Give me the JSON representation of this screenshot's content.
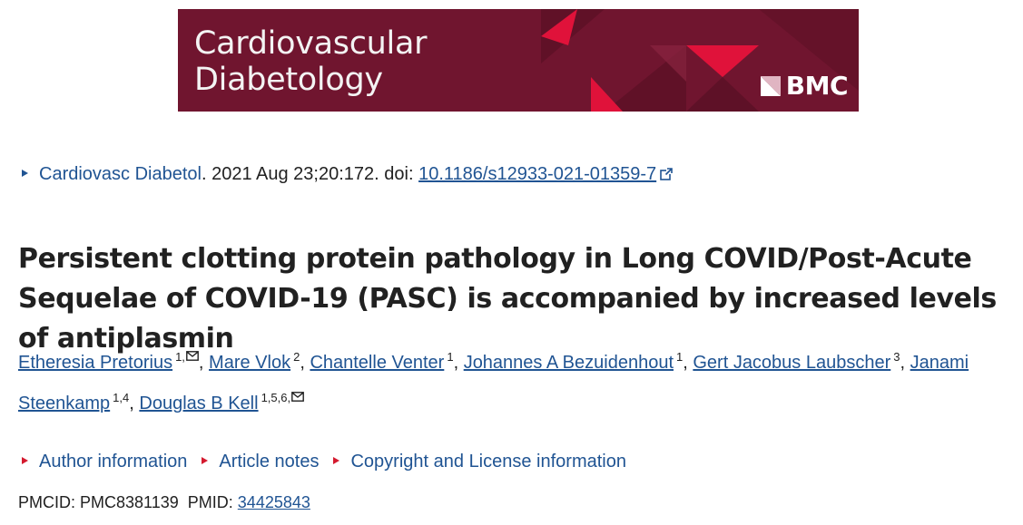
{
  "banner": {
    "journal_line1": "Cardiovascular",
    "journal_line2": "Diabetology",
    "publisher": "BMC",
    "colors": {
      "background": "#70152f",
      "accent": "#e0123a"
    }
  },
  "citation": {
    "journal": "Cardiovasc Diabetol",
    "details": ". 2021 Aug 23;20:172. doi: ",
    "doi": "10.1186/s12933-021-01359-7"
  },
  "title": "Persistent clotting protein pathology in Long COVID/Post-Acute Sequelae of COVID-19 (PASC) is accompanied by increased levels of antiplasmin",
  "authors": [
    {
      "name": "Etheresia Pretorius",
      "aff": "1,",
      "mail": true,
      "sep": ", "
    },
    {
      "name": "Mare Vlok",
      "aff": "2",
      "mail": false,
      "sep": ", "
    },
    {
      "name": "Chantelle Venter",
      "aff": "1",
      "mail": false,
      "sep": ", "
    },
    {
      "name": "Johannes A Bezuidenhout",
      "aff": "1",
      "mail": false,
      "sep": ", "
    },
    {
      "name": "Gert Jacobus Laubscher",
      "aff": "3",
      "mail": false,
      "sep": ", "
    },
    {
      "name": "Janami Steenkamp",
      "aff": "1,4",
      "mail": false,
      "sep": ", "
    },
    {
      "name": "Douglas B Kell",
      "aff": "1,5,6,",
      "mail": true,
      "sep": ""
    }
  ],
  "expanders": [
    {
      "label": "Author information"
    },
    {
      "label": "Article notes"
    },
    {
      "label": "Copyright and License information"
    }
  ],
  "ids": {
    "pmcid_label": "PMCID: ",
    "pmcid": "PMC8381139",
    "pmid_label": "PMID: ",
    "pmid": "34425843"
  },
  "icons": {
    "citation_toggle": "triangle-right-icon",
    "doi_external": "external-link-icon",
    "author_mail": "envelope-icon",
    "expander_toggle": "triangle-right-icon"
  }
}
